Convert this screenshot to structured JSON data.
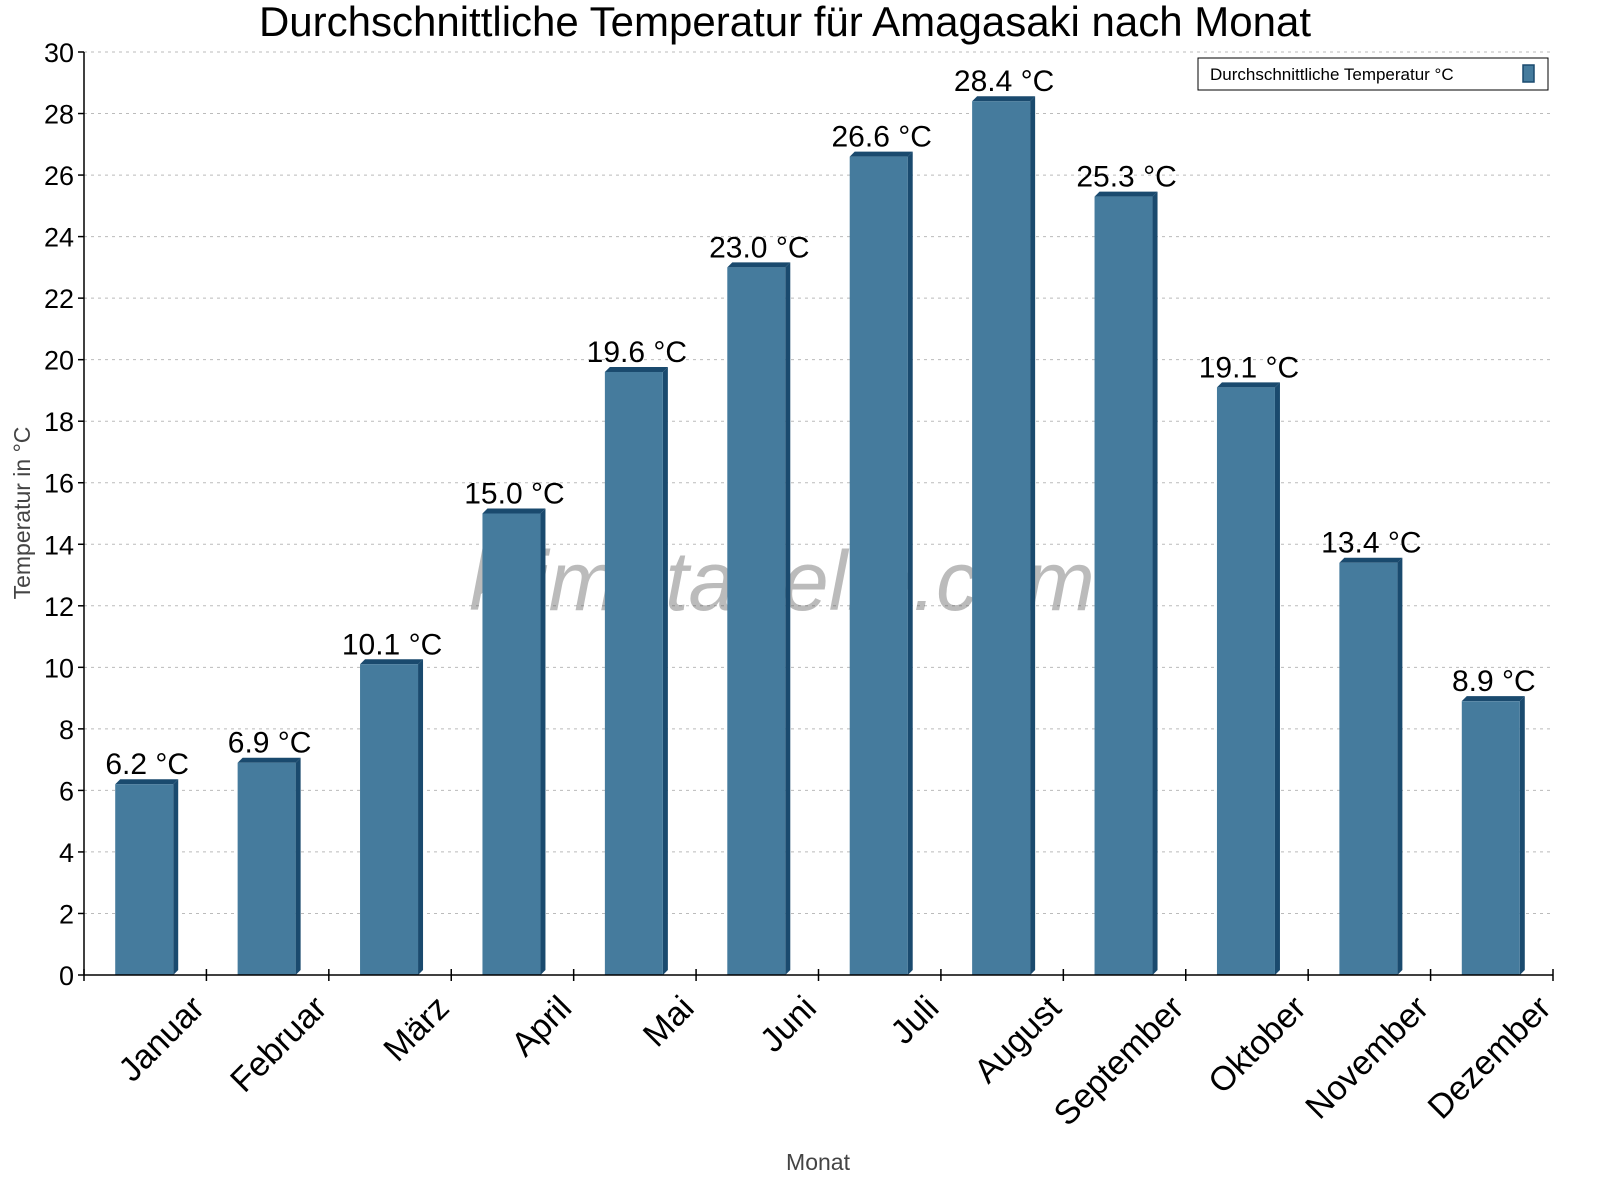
{
  "chart_data": {
    "type": "bar",
    "title": "Durchschnittliche Temperatur für Amagasaki nach Monat",
    "xlabel": "Monat",
    "ylabel": "Temperatur in °C",
    "ylim": [
      0,
      30
    ],
    "yticks": [
      0,
      2,
      4,
      6,
      8,
      10,
      12,
      14,
      16,
      18,
      20,
      22,
      24,
      26,
      28,
      30
    ],
    "grid": true,
    "legend_position": "top-right",
    "categories": [
      "Januar",
      "Februar",
      "März",
      "April",
      "Mai",
      "Juni",
      "Juli",
      "August",
      "September",
      "Oktober",
      "November",
      "Dezember"
    ],
    "series": [
      {
        "name": "Durchschnittliche Temperatur °C",
        "values": [
          6.2,
          6.9,
          10.1,
          15.0,
          19.6,
          23.0,
          26.6,
          28.4,
          25.3,
          19.1,
          13.4,
          8.9
        ],
        "labels": [
          "6.2 °C",
          "6.9 °C",
          "10.1 °C",
          "15.0 °C",
          "19.6 °C",
          "23.0 °C",
          "26.6 °C",
          "28.4 °C",
          "25.3 °C",
          "19.1 °C",
          "13.4 °C",
          "8.9 °C"
        ],
        "color": "#457b9d",
        "shade_color": "#1a4a6e"
      }
    ],
    "watermark": "klimatabelle.com"
  }
}
